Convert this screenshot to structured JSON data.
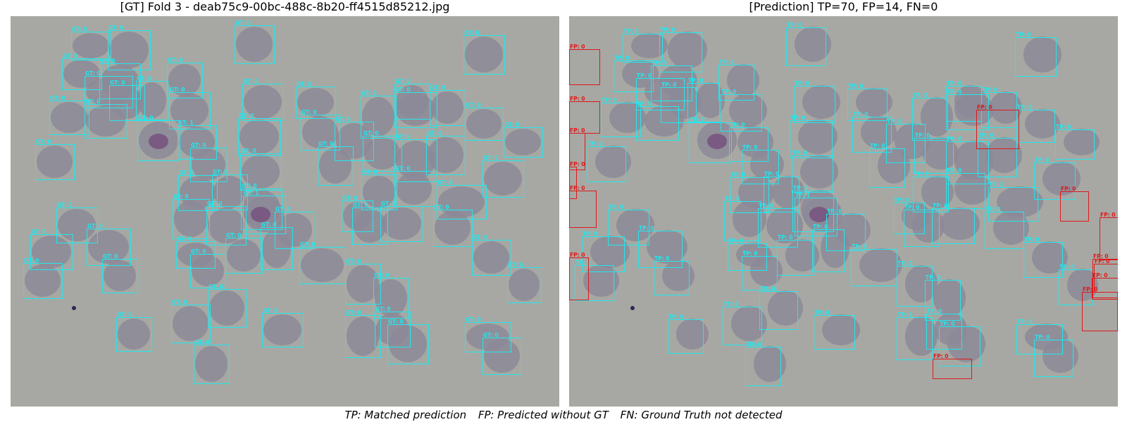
{
  "left_panel": {
    "title": "[GT] Fold 3 - deab75c9-00bc-488c-8b20-ff4515d85212.jpg",
    "label_text": "GT: 0",
    "label_text_alt": "GT: 1"
  },
  "right_panel": {
    "title": "[Prediction] TP=70, FP=14, FN=0",
    "tp_label": "TP: 0",
    "tp_label_alt": "TP: 1",
    "fp_label": "FP: 0"
  },
  "legend": {
    "tp": "TP: Matched prediction",
    "fp": "FP: Predicted without GT",
    "fn": "FN: Ground Truth not detected"
  },
  "colors": {
    "gt_box": "#20e8ef",
    "tp_box": "#20e8ef",
    "fp_box": "#e01818",
    "background": "#a7a8a3",
    "cell_fill": "#8c8a98",
    "parasite": "#7a5a82"
  }
}
